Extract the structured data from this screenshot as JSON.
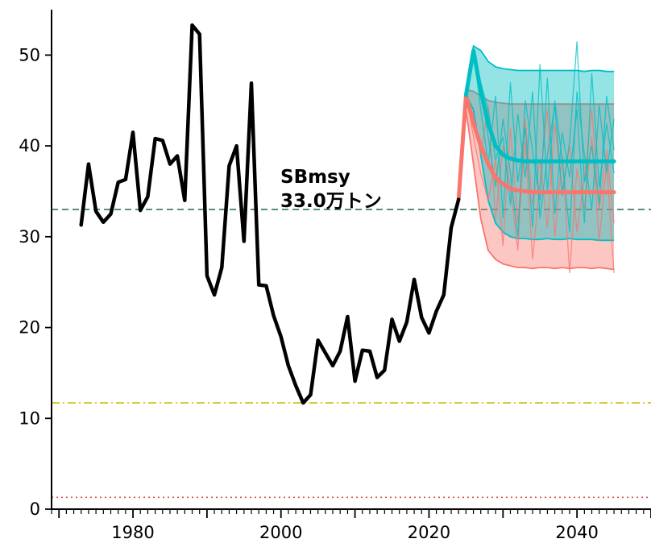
{
  "chart_data": {
    "type": "line",
    "xlim": [
      1969,
      2050
    ],
    "ylim": [
      0,
      55
    ],
    "x_ticks": [
      1980,
      2000,
      2020,
      2040
    ],
    "y_ticks": [
      0,
      10,
      20,
      30,
      40,
      50
    ],
    "grid": false,
    "legend": "none",
    "historical": {
      "color": "#000000",
      "x": [
        1973,
        1974,
        1975,
        1976,
        1977,
        1978,
        1979,
        1980,
        1981,
        1982,
        1983,
        1984,
        1985,
        1986,
        1987,
        1988,
        1989,
        1990,
        1991,
        1992,
        1993,
        1994,
        1995,
        1996,
        1997,
        1998,
        1999,
        2000,
        2001,
        2002,
        2003,
        2004,
        2005,
        2006,
        2007,
        2008,
        2009,
        2010,
        2011,
        2012,
        2013,
        2014,
        2015,
        2016,
        2017,
        2018,
        2019,
        2020,
        2021,
        2022,
        2023,
        2024
      ],
      "y": [
        31.3,
        38.0,
        32.8,
        31.6,
        32.5,
        36.0,
        36.3,
        41.5,
        32.9,
        34.4,
        40.8,
        40.6,
        38.0,
        38.9,
        34.0,
        53.3,
        52.3,
        25.7,
        23.6,
        26.6,
        37.8,
        40.0,
        29.5,
        46.9,
        24.7,
        24.6,
        21.3,
        19.0,
        15.8,
        13.6,
        11.7,
        12.6,
        18.6,
        17.2,
        15.8,
        17.4,
        21.2,
        14.1,
        17.5,
        17.4,
        14.5,
        15.3,
        20.9,
        18.5,
        20.6,
        25.3,
        21.1,
        19.4,
        21.8,
        23.6,
        31.0,
        34.1
      ]
    },
    "scenarios": [
      {
        "color": "#F8766D",
        "x": [
          2024,
          2025,
          2026,
          2027,
          2028,
          2029,
          2030,
          2031,
          2032,
          2033,
          2034,
          2035,
          2036,
          2037,
          2038,
          2039,
          2040,
          2041,
          2042,
          2043,
          2044,
          2045
        ],
        "median": [
          34.1,
          45.6,
          42.5,
          40.0,
          38.0,
          36.5,
          35.8,
          35.3,
          35.1,
          35.0,
          34.9,
          34.9,
          34.9,
          34.9,
          34.9,
          34.9,
          34.9,
          34.9,
          34.9,
          34.9,
          34.9,
          34.9
        ],
        "lower": [
          34.1,
          44.0,
          38.0,
          32.0,
          28.5,
          27.5,
          27.0,
          26.8,
          26.6,
          26.6,
          26.5,
          26.6,
          26.6,
          26.5,
          26.6,
          26.5,
          26.6,
          26.6,
          26.5,
          26.6,
          26.5,
          26.4
        ],
        "upper": [
          34.1,
          46.2,
          46.0,
          45.5,
          45.0,
          44.8,
          44.7,
          44.6,
          44.6,
          44.6,
          44.6,
          44.6,
          44.6,
          44.6,
          44.6,
          44.6,
          44.6,
          44.6,
          44.6,
          44.6,
          44.6,
          44.6
        ],
        "runs": [
          [
            34.1,
            45.6,
            41.0,
            37.0,
            34.0,
            38.5,
            29.0,
            42.0,
            31.5,
            40.5,
            27.5,
            36.0,
            44.0,
            30.0,
            39.0,
            26.0,
            37.5,
            33.0,
            41.0,
            29.5,
            38.0,
            26.0
          ],
          [
            34.1,
            45.6,
            43.5,
            39.0,
            44.5,
            32.0,
            40.0,
            35.5,
            28.5,
            43.0,
            33.5,
            38.5,
            31.0,
            42.5,
            35.0,
            40.0,
            30.5,
            36.5,
            44.0,
            33.0,
            39.5,
            31.5
          ]
        ]
      },
      {
        "color": "#00BFC4",
        "x": [
          2025,
          2026,
          2027,
          2028,
          2029,
          2030,
          2031,
          2032,
          2033,
          2034,
          2035,
          2036,
          2037,
          2038,
          2039,
          2040,
          2041,
          2042,
          2043,
          2044,
          2045
        ],
        "median": [
          45.6,
          50.5,
          46.0,
          42.5,
          40.0,
          39.0,
          38.6,
          38.4,
          38.3,
          38.3,
          38.3,
          38.3,
          38.3,
          38.3,
          38.3,
          38.3,
          38.3,
          38.3,
          38.3,
          38.3,
          38.3
        ],
        "lower": [
          45.6,
          44.0,
          39.0,
          34.0,
          31.5,
          30.5,
          30.0,
          29.8,
          29.8,
          29.7,
          29.7,
          29.8,
          29.7,
          29.7,
          29.8,
          29.7,
          29.7,
          29.7,
          29.6,
          29.6,
          29.6
        ],
        "upper": [
          45.6,
          51.0,
          50.5,
          49.3,
          48.7,
          48.5,
          48.4,
          48.3,
          48.3,
          48.3,
          48.3,
          48.3,
          48.3,
          48.3,
          48.3,
          48.3,
          48.2,
          48.3,
          48.3,
          48.2,
          48.2
        ],
        "runs": [
          [
            45.6,
            50.5,
            44.0,
            38.0,
            45.5,
            32.0,
            47.0,
            36.0,
            42.0,
            31.0,
            49.0,
            35.0,
            45.0,
            38.5,
            30.5,
            46.0,
            39.0,
            33.0,
            44.5,
            37.0,
            43.0
          ],
          [
            45.6,
            50.5,
            46.5,
            41.0,
            35.5,
            43.0,
            37.0,
            30.0,
            45.0,
            39.5,
            34.0,
            47.5,
            32.5,
            41.5,
            36.5,
            44.0,
            31.5,
            48.0,
            35.5,
            42.5,
            37.0
          ],
          [
            45.6,
            50.5,
            47.0,
            44.0,
            38.5,
            41.0,
            33.5,
            43.5,
            36.5,
            46.0,
            32.0,
            39.0,
            44.5,
            34.5,
            40.5,
            51.5,
            36.0,
            40.0,
            33.5,
            45.5,
            39.5
          ]
        ]
      }
    ],
    "reference_lines": [
      {
        "y": 33.0,
        "color": "#1f6b45",
        "style": "dashed",
        "label_line1": "SBmsy",
        "label_line2": "33.0万トン"
      },
      {
        "y": 11.7,
        "color": "#d4b800",
        "style": "dashdot"
      },
      {
        "y": 1.3,
        "color": "#d9534f",
        "style": "dotted"
      }
    ]
  }
}
